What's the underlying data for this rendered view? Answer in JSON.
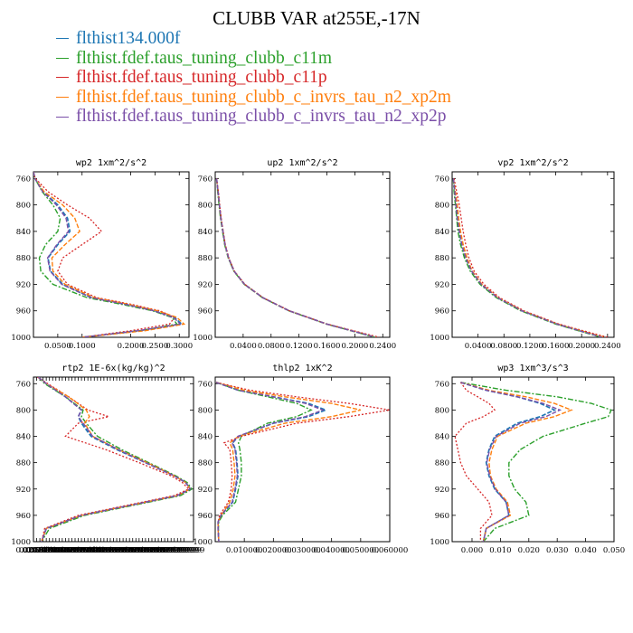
{
  "title": "CLUBB VAR at255E,-17N",
  "legend": [
    {
      "label": "flthist134.000f",
      "color": "#1f77b4"
    },
    {
      "label": "flthist.fdef.taus_tuning_clubb_c11m",
      "color": "#2ca02c"
    },
    {
      "label": "flthist.fdef.taus_tuning_clubb_c11p",
      "color": "#d62728"
    },
    {
      "label": "flthist.fdef.taus_tuning_clubb_c_invrs_tau_n2_xp2m",
      "color": "#ff7f0e"
    },
    {
      "label": "flthist.fdef.taus_tuning_clubb_c_invrs_tau_n2_xp2p",
      "color": "#7b4fa8"
    }
  ],
  "chart_data": [
    {
      "type": "line",
      "title": "wp2  1xm^2/s^2",
      "ylim": [
        1000,
        750
      ],
      "xlim": [
        0,
        0.32
      ],
      "yticks": [
        "760",
        "800",
        "840",
        "880",
        "920",
        "960",
        "1000"
      ],
      "xticks": [
        "0.0500",
        "0.1000",
        "0.2000",
        "0.2500",
        "0.3000"
      ],
      "y": [
        750,
        760,
        780,
        800,
        820,
        840,
        860,
        880,
        900,
        920,
        940,
        950,
        960,
        970,
        980,
        990,
        1000
      ],
      "series": [
        {
          "x": [
            0,
            0.003,
            0.02,
            0.05,
            0.07,
            0.075,
            0.05,
            0.03,
            0.035,
            0.06,
            0.12,
            0.19,
            0.25,
            0.29,
            0.305,
            0.22,
            0.1
          ]
        },
        {
          "x": [
            0,
            0.003,
            0.018,
            0.04,
            0.055,
            0.05,
            0.025,
            0.012,
            0.015,
            0.04,
            0.11,
            0.18,
            0.245,
            0.285,
            0.295,
            0.22,
            0.1
          ]
        },
        {
          "x": [
            0,
            0.004,
            0.03,
            0.07,
            0.115,
            0.14,
            0.1,
            0.06,
            0.05,
            0.07,
            0.13,
            0.2,
            0.26,
            0.29,
            0.28,
            0.2,
            0.1
          ]
        },
        {
          "x": [
            0,
            0.003,
            0.022,
            0.06,
            0.085,
            0.095,
            0.065,
            0.038,
            0.04,
            0.065,
            0.125,
            0.195,
            0.255,
            0.295,
            0.31,
            0.23,
            0.1
          ]
        },
        {
          "x": [
            0,
            0.003,
            0.019,
            0.047,
            0.067,
            0.072,
            0.048,
            0.029,
            0.034,
            0.058,
            0.118,
            0.188,
            0.248,
            0.288,
            0.302,
            0.215,
            0.1
          ]
        }
      ]
    },
    {
      "type": "line",
      "title": "up2  1xm^2/s^2",
      "ylim": [
        1000,
        750
      ],
      "xlim": [
        0,
        0.25
      ],
      "yticks": [
        "760",
        "800",
        "840",
        "880",
        "920",
        "960",
        "1000"
      ],
      "xticks": [
        "0.0400",
        "0.0800",
        "0.1200",
        "0.1600",
        "0.2000",
        "0.2400"
      ],
      "y": [
        760,
        780,
        800,
        820,
        840,
        860,
        880,
        900,
        920,
        940,
        960,
        980,
        1000
      ],
      "series": [
        {
          "x": [
            0.002,
            0.004,
            0.006,
            0.008,
            0.011,
            0.014,
            0.019,
            0.027,
            0.042,
            0.068,
            0.106,
            0.16,
            0.23
          ]
        },
        {
          "x": [
            0.002,
            0.0035,
            0.0055,
            0.0075,
            0.0105,
            0.0135,
            0.0185,
            0.0265,
            0.0415,
            0.0675,
            0.1055,
            0.1595,
            0.229
          ]
        },
        {
          "x": [
            0.002,
            0.0045,
            0.0065,
            0.0085,
            0.0115,
            0.0145,
            0.0195,
            0.0275,
            0.0425,
            0.0685,
            0.1065,
            0.1605,
            0.235
          ]
        },
        {
          "x": [
            0.002,
            0.004,
            0.006,
            0.008,
            0.011,
            0.014,
            0.019,
            0.027,
            0.042,
            0.068,
            0.106,
            0.16,
            0.231
          ]
        },
        {
          "x": [
            0.002,
            0.004,
            0.006,
            0.008,
            0.011,
            0.014,
            0.019,
            0.027,
            0.042,
            0.068,
            0.106,
            0.16,
            0.23
          ]
        }
      ]
    },
    {
      "type": "line",
      "title": "vp2  1xm^2/s^2",
      "ylim": [
        1000,
        750
      ],
      "xlim": [
        0,
        0.25
      ],
      "yticks": [
        "760",
        "800",
        "840",
        "880",
        "920",
        "960",
        "1000"
      ],
      "xticks": [
        "0.0400",
        "0.0800",
        "0.1200",
        "0.1600",
        "0.2000",
        "0.2400"
      ],
      "y": [
        760,
        780,
        800,
        820,
        840,
        860,
        880,
        900,
        920,
        940,
        960,
        980,
        1000
      ],
      "series": [
        {
          "x": [
            0.002,
            0.004,
            0.006,
            0.008,
            0.011,
            0.015,
            0.021,
            0.03,
            0.045,
            0.07,
            0.108,
            0.162,
            0.232
          ]
        },
        {
          "x": [
            0.002,
            0.003,
            0.005,
            0.007,
            0.009,
            0.013,
            0.019,
            0.028,
            0.043,
            0.068,
            0.106,
            0.16,
            0.23
          ]
        },
        {
          "x": [
            0.003,
            0.007,
            0.011,
            0.014,
            0.017,
            0.021,
            0.026,
            0.034,
            0.049,
            0.073,
            0.111,
            0.165,
            0.24
          ]
        },
        {
          "x": [
            0.002,
            0.005,
            0.008,
            0.01,
            0.013,
            0.017,
            0.023,
            0.031,
            0.046,
            0.071,
            0.109,
            0.163,
            0.235
          ]
        },
        {
          "x": [
            0.002,
            0.004,
            0.006,
            0.008,
            0.011,
            0.015,
            0.021,
            0.03,
            0.045,
            0.07,
            0.108,
            0.162,
            0.232
          ]
        }
      ]
    },
    {
      "type": "line",
      "title": "rtp2  1E-6x(kg/kg)^2",
      "ylim": [
        1000,
        750
      ],
      "xlim": [
        0,
        1
      ],
      "yticks": [
        "760",
        "800",
        "840",
        "880",
        "920",
        "960",
        "1000"
      ],
      "xticks": [
        "0.0200000",
        "0.0399999",
        "0.0599999",
        "0.0799999",
        "0.0999999",
        "0.1199999",
        "0.1399999",
        "0.1599999",
        "0.1799999",
        "0.1999999",
        "0.2199999",
        "0.2399999",
        "0.2599999",
        "0.2799999",
        "0.2999999",
        "0.3199999",
        "0.3399999",
        "0.3599999",
        "0.3799999",
        "0.3999999",
        "0.4199999",
        "0.4399999",
        "0.4599999",
        "0.4799999",
        "0.4999999",
        "0.5199999",
        "0.5399999",
        "0.5599999",
        "0.5799999",
        "0.5999999",
        "0.6199999",
        "0.6399999",
        "0.6599999",
        "0.6799999",
        "0.6999999",
        "0.7199999",
        "0.7399999",
        "0.7599999",
        "0.7799999",
        "0.7999999",
        "0.8199999",
        "0.8399999",
        "0.8599999",
        "0.8799999",
        "0.8999999",
        "0.9199999",
        "0.9399999"
      ],
      "y": [
        750,
        760,
        780,
        800,
        810,
        820,
        840,
        860,
        880,
        900,
        910,
        920,
        930,
        940,
        960,
        980,
        1000
      ],
      "series": [
        {
          "x": [
            0.03,
            0.08,
            0.2,
            0.3,
            0.28,
            0.3,
            0.36,
            0.52,
            0.7,
            0.88,
            0.95,
            0.98,
            0.9,
            0.7,
            0.3,
            0.08,
            0.05
          ]
        },
        {
          "x": [
            0.03,
            0.07,
            0.2,
            0.31,
            0.3,
            0.33,
            0.4,
            0.55,
            0.72,
            0.89,
            0.96,
            0.99,
            0.92,
            0.72,
            0.32,
            0.1,
            0.05
          ]
        },
        {
          "x": [
            0.025,
            0.09,
            0.22,
            0.34,
            0.47,
            0.28,
            0.2,
            0.45,
            0.66,
            0.86,
            0.93,
            0.97,
            0.88,
            0.68,
            0.28,
            0.07,
            0.05
          ]
        },
        {
          "x": [
            0.03,
            0.08,
            0.22,
            0.33,
            0.35,
            0.32,
            0.37,
            0.53,
            0.71,
            0.88,
            0.95,
            0.98,
            0.9,
            0.7,
            0.3,
            0.08,
            0.05
          ]
        },
        {
          "x": [
            0.03,
            0.08,
            0.2,
            0.3,
            0.28,
            0.31,
            0.37,
            0.53,
            0.7,
            0.88,
            0.95,
            0.98,
            0.9,
            0.7,
            0.3,
            0.08,
            0.05
          ]
        }
      ]
    },
    {
      "type": "line",
      "title": "thlp2  1xK^2",
      "ylim": [
        1000,
        750
      ],
      "xlim": [
        0,
        0.06
      ],
      "yticks": [
        "760",
        "800",
        "840",
        "880",
        "920",
        "960",
        "1000"
      ],
      "xticks": [
        "0.010000",
        "0.020000",
        "0.030000",
        "0.040000",
        "0.050000",
        "0.060000"
      ],
      "y": [
        758,
        770,
        780,
        790,
        800,
        810,
        820,
        840,
        850,
        860,
        880,
        900,
        920,
        940,
        960,
        970,
        980,
        1000
      ],
      "series": [
        {
          "x": [
            0.0003,
            0.008,
            0.02,
            0.032,
            0.038,
            0.032,
            0.02,
            0.008,
            0.006,
            0.007,
            0.0075,
            0.0078,
            0.007,
            0.006,
            0.002,
            0.001,
            0.001,
            0.0012
          ]
        },
        {
          "x": [
            0.0003,
            0.008,
            0.018,
            0.028,
            0.033,
            0.028,
            0.018,
            0.009,
            0.008,
            0.0085,
            0.009,
            0.009,
            0.008,
            0.007,
            0.0025,
            0.0012,
            0.0011,
            0.0012
          ]
        },
        {
          "x": [
            0.0003,
            0.012,
            0.028,
            0.046,
            0.06,
            0.046,
            0.028,
            0.009,
            0.003,
            0.005,
            0.0055,
            0.0058,
            0.0055,
            0.0045,
            0.0015,
            0.001,
            0.001,
            0.0012
          ]
        },
        {
          "x": [
            0.0003,
            0.01,
            0.024,
            0.04,
            0.05,
            0.04,
            0.024,
            0.008,
            0.005,
            0.006,
            0.0065,
            0.0068,
            0.0062,
            0.005,
            0.002,
            0.001,
            0.001,
            0.0012
          ]
        },
        {
          "x": [
            0.0003,
            0.008,
            0.02,
            0.031,
            0.037,
            0.031,
            0.02,
            0.0078,
            0.0058,
            0.0068,
            0.0073,
            0.0076,
            0.0068,
            0.0058,
            0.002,
            0.001,
            0.001,
            0.0012
          ]
        }
      ]
    },
    {
      "type": "line",
      "title": "wp3  1xm^3/s^3",
      "ylim": [
        1000,
        750
      ],
      "xlim": [
        -0.007,
        0.05
      ],
      "yticks": [
        "760",
        "800",
        "840",
        "880",
        "920",
        "960",
        "1000"
      ],
      "xticks": [
        "0.000",
        "0.010",
        "0.020",
        "0.030",
        "0.040",
        "0.050"
      ],
      "y": [
        758,
        770,
        780,
        790,
        800,
        810,
        820,
        840,
        860,
        880,
        900,
        920,
        940,
        960,
        980,
        1000
      ],
      "series": [
        {
          "x": [
            -0.004,
            0.005,
            0.016,
            0.024,
            0.029,
            0.024,
            0.016,
            0.008,
            0.006,
            0.005,
            0.006,
            0.008,
            0.012,
            0.013,
            0.005,
            0.004
          ]
        },
        {
          "x": [
            -0.004,
            0.012,
            0.03,
            0.042,
            0.049,
            0.048,
            0.04,
            0.025,
            0.017,
            0.013,
            0.013,
            0.015,
            0.019,
            0.02,
            0.008,
            0.004
          ]
        },
        {
          "x": [
            -0.004,
            -0.002,
            0.002,
            0.006,
            0.008,
            0.004,
            -0.002,
            -0.006,
            -0.005,
            -0.004,
            -0.002,
            0.002,
            0.006,
            0.007,
            0.003,
            0.003
          ]
        },
        {
          "x": [
            -0.004,
            0.006,
            0.019,
            0.029,
            0.035,
            0.029,
            0.019,
            0.009,
            0.007,
            0.006,
            0.0065,
            0.0085,
            0.0125,
            0.0135,
            0.005,
            0.004
          ]
        },
        {
          "x": [
            -0.004,
            0.005,
            0.016,
            0.025,
            0.031,
            0.026,
            0.017,
            0.0085,
            0.0062,
            0.0052,
            0.0062,
            0.0082,
            0.012,
            0.013,
            0.005,
            0.004
          ]
        }
      ]
    }
  ]
}
